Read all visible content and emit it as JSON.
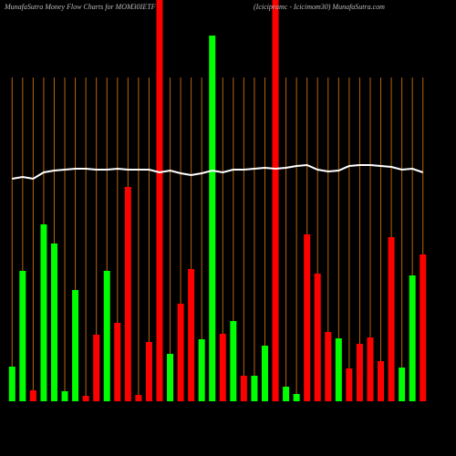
{
  "chart_data": {
    "type": "bar",
    "title": "MunafaSutra  Money Flow  Charts for MOM30IETF",
    "subtitle": "(Icicipramc - Icicimom30) MunafaSutra.com",
    "categories": [
      null,
      null,
      null,
      null,
      null,
      null,
      null,
      null,
      null,
      null,
      null,
      null,
      null,
      null,
      null,
      null,
      null,
      null,
      null,
      null,
      null,
      null,
      null,
      null,
      null,
      null,
      null,
      null,
      null,
      null,
      null,
      null,
      null,
      null,
      null,
      null,
      null,
      null,
      null,
      null
    ],
    "series": [
      {
        "values": [
          38,
          143,
          12,
          194,
          173,
          11,
          122,
          6,
          73,
          143,
          86,
          235,
          7,
          65,
          440,
          52,
          107,
          145,
          68,
          401,
          74,
          88,
          28,
          28,
          61,
          440,
          16,
          8,
          183,
          140,
          76,
          69,
          36,
          63,
          70,
          44,
          180,
          37,
          138,
          161
        ],
        "colors": [
          "#00ff00",
          "#00ff00",
          "#ff0000",
          "#00ff00",
          "#00ff00",
          "#00ff00",
          "#00ff00",
          "#ff0000",
          "#ff0000",
          "#00ff00",
          "#ff0000",
          "#ff0000",
          "#ff0000",
          "#ff0000",
          "#ff0000",
          "#00ff00",
          "#ff0000",
          "#ff0000",
          "#00ff00",
          "#00ff00",
          "#ff0000",
          "#00ff00",
          "#ff0000",
          "#00ff00",
          "#00ff00",
          "#ff0000",
          "#00ff00",
          "#00ff00",
          "#ff0000",
          "#ff0000",
          "#ff0000",
          "#00ff00",
          "#ff0000",
          "#ff0000",
          "#ff0000",
          "#ff0000",
          "#ff0000",
          "#00ff00",
          "#00ff00",
          "#ff0000"
        ]
      },
      {
        "type": "line",
        "color": "#ffffff",
        "values": [
          244,
          246,
          244,
          251,
          253,
          254,
          255,
          255,
          254,
          254,
          255,
          254,
          254,
          254,
          251,
          253,
          250,
          248,
          250,
          253,
          251,
          254,
          254,
          255,
          256,
          255,
          256,
          258,
          259,
          254,
          252,
          253,
          258,
          259,
          259,
          258,
          257,
          254,
          255,
          251
        ]
      }
    ],
    "gridline_color": "#b8640a"
  }
}
